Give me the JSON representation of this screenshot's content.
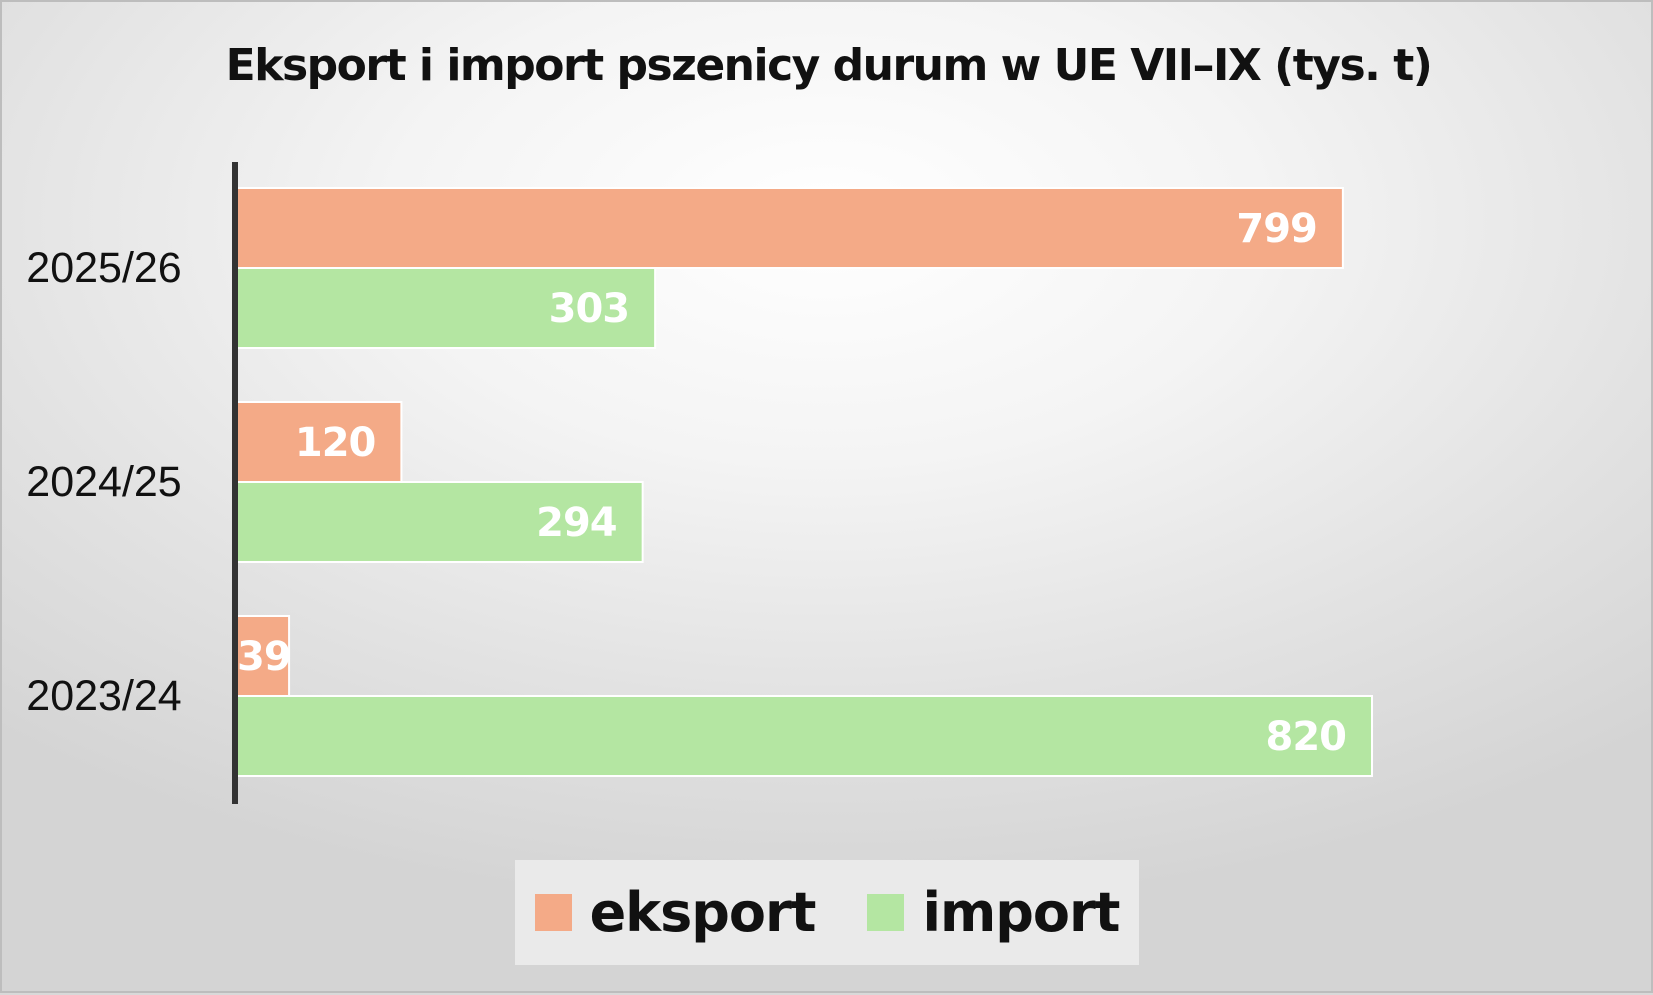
{
  "chart_data": {
    "type": "bar",
    "orientation": "horizontal",
    "title": "Eksport i import pszenicy durum w UE VII–IX (tys. t)",
    "categories": [
      "2025/26",
      "2024/25",
      "2023/24"
    ],
    "series": [
      {
        "name": "eksport",
        "color": "#f4aa87",
        "values": [
          799,
          120,
          39
        ]
      },
      {
        "name": "import",
        "color": "#b4e6a2",
        "values": [
          303,
          294,
          820
        ]
      }
    ],
    "xlim": [
      0,
      820
    ],
    "grid": false,
    "data_labels": true,
    "legend_position": "bottom"
  }
}
